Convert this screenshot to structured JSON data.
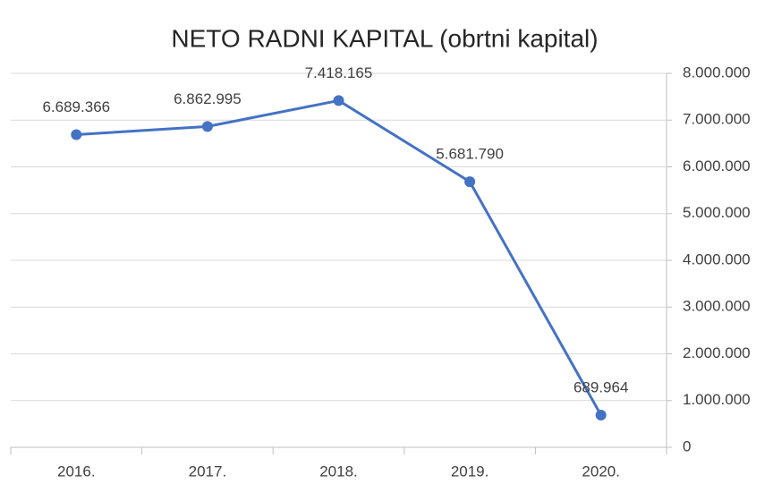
{
  "chart_data": {
    "type": "line",
    "title": "NETO RADNI KAPITAL (obrtni kapital)",
    "categories": [
      "2016.",
      "2017.",
      "2018.",
      "2019.",
      "2020."
    ],
    "series": [
      {
        "name": "NETO RADNI KAPITAL",
        "color": "#4472c4",
        "values": [
          6689366,
          6862995,
          7418165,
          5681790,
          689964
        ],
        "value_labels": [
          "6.689.366",
          "6.862.995",
          "7.418.165",
          "5.681.790",
          "689.964"
        ]
      }
    ],
    "ylim": [
      0,
      8000000
    ],
    "yticks": [
      0,
      {
        "value": 1000000,
        "label": "1.000.000"
      },
      {
        "value": 2000000,
        "label": "2.000.000"
      },
      {
        "value": 3000000,
        "label": "3.000.000"
      },
      {
        "value": 4000000,
        "label": "4.000.000"
      },
      {
        "value": 5000000,
        "label": "5.000.000"
      },
      {
        "value": 6000000,
        "label": "6.000.000"
      },
      {
        "value": 7000000,
        "label": "7.000.000"
      },
      {
        "value": 8000000,
        "label": "8.000.000"
      }
    ],
    "grid": true,
    "y_axis_side": "right"
  }
}
